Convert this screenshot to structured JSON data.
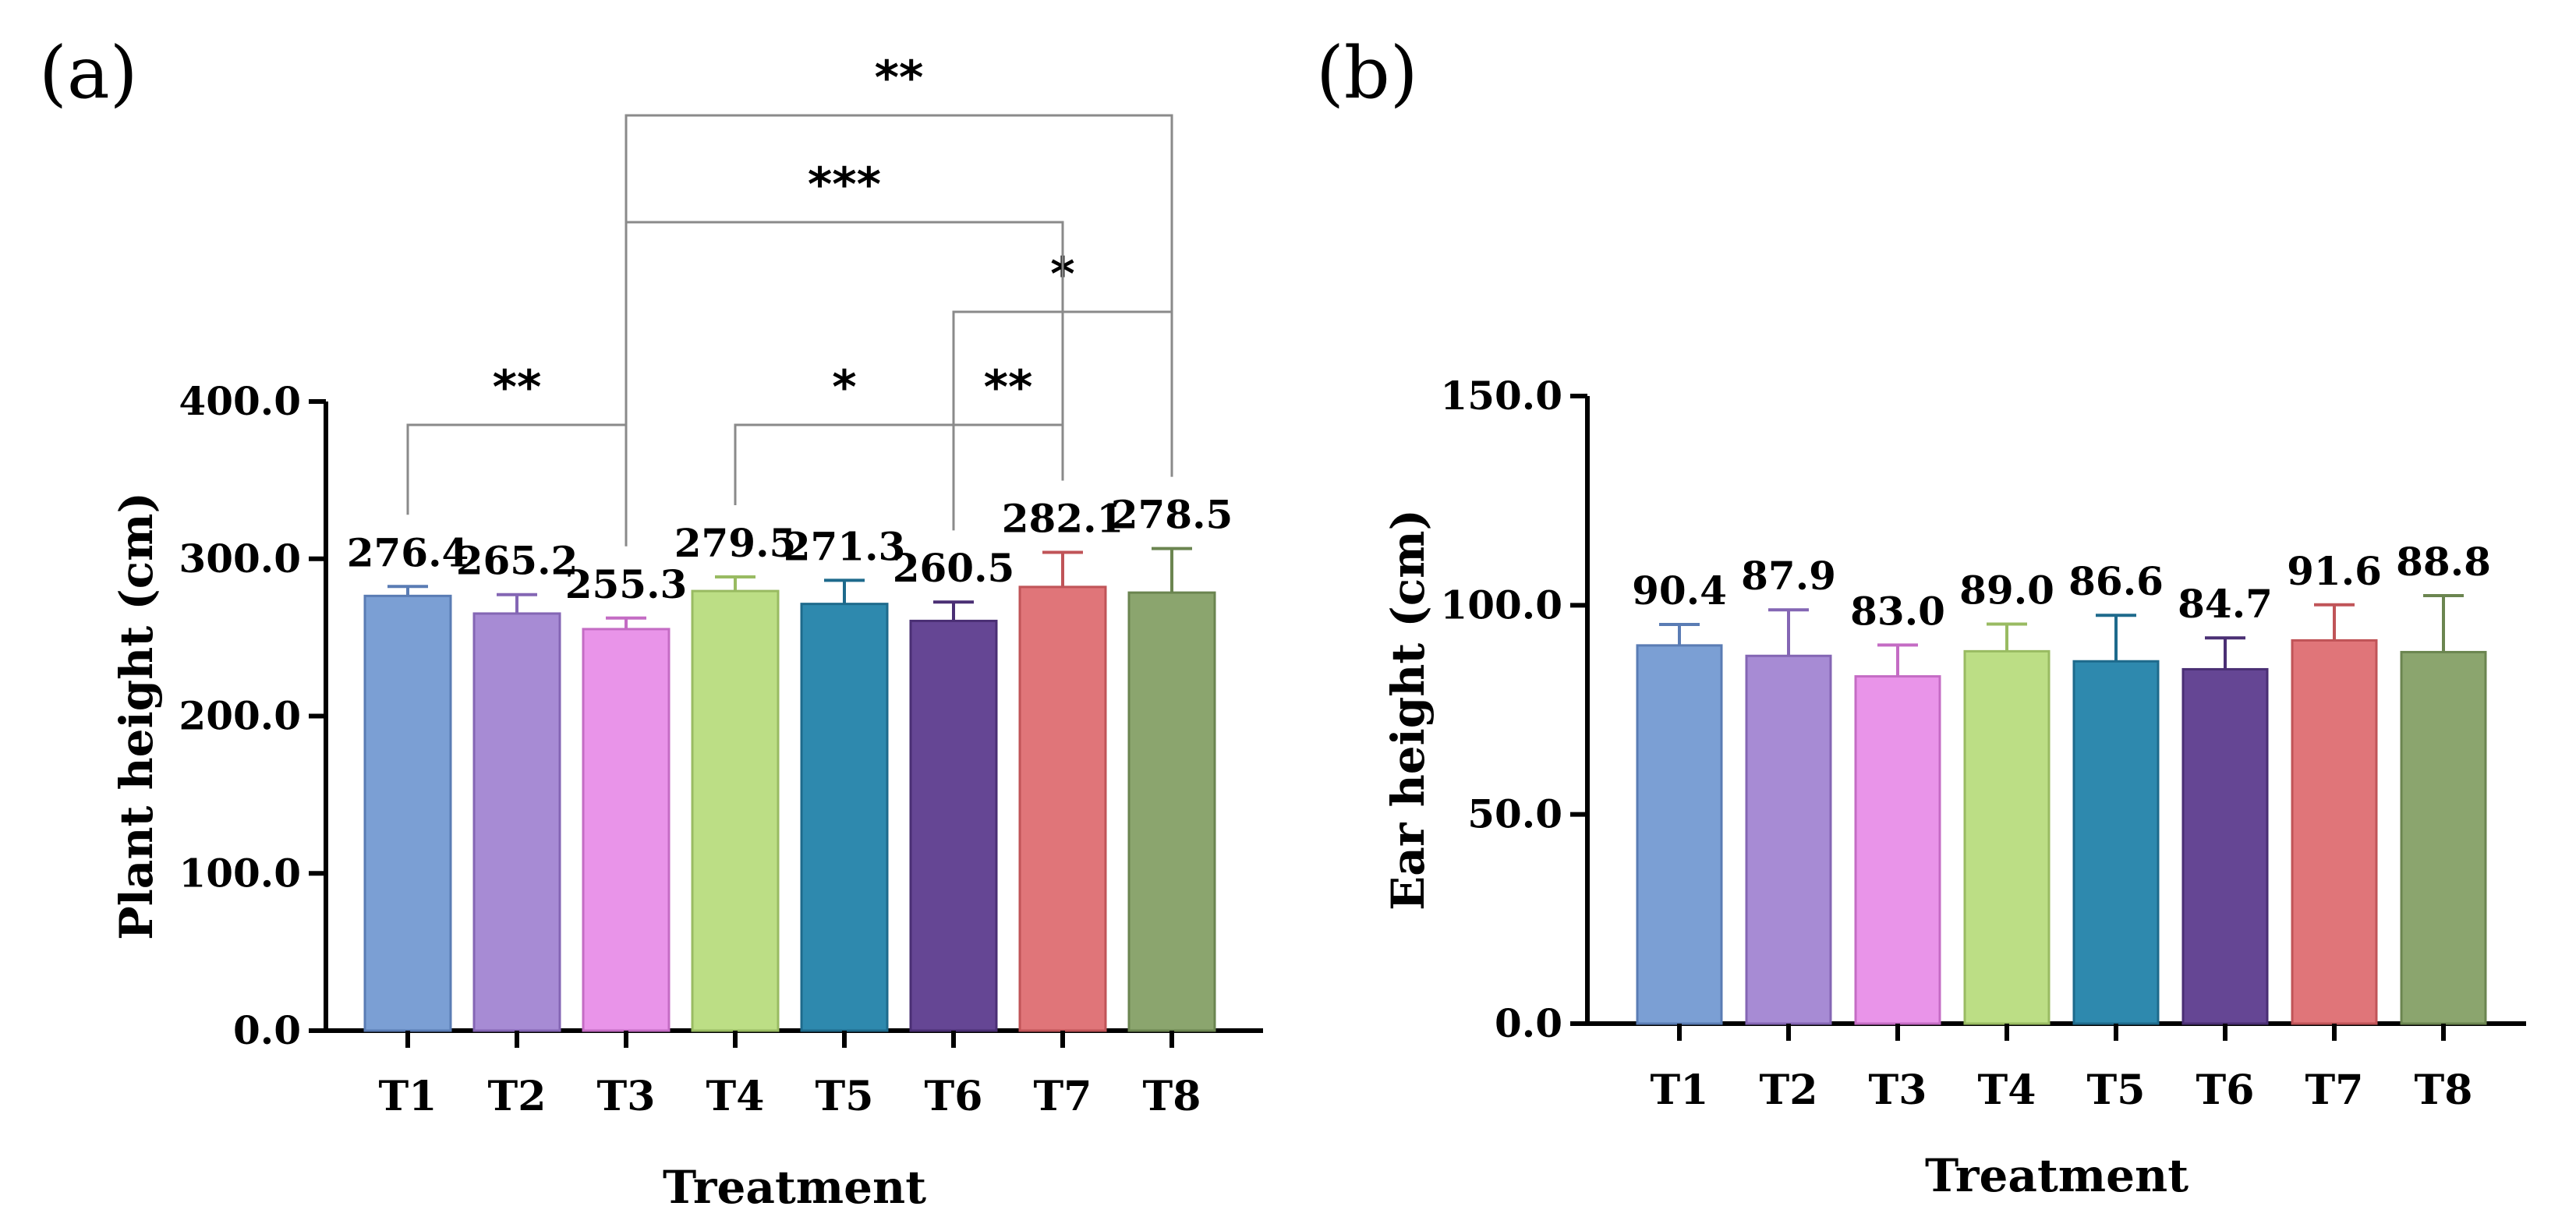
{
  "chart_data": [
    {
      "type": "bar",
      "panel_label": "(a)",
      "title": "",
      "xlabel": "Treatment",
      "ylabel": "Plant height (cm)",
      "ylim": [
        0,
        400
      ],
      "yticks": [
        "0.0",
        "100.0",
        "200.0",
        "300.0",
        "400.0"
      ],
      "ytick_values": [
        0,
        100,
        200,
        300,
        400
      ],
      "categories": [
        "T1",
        "T2",
        "T3",
        "T4",
        "T5",
        "T6",
        "T7",
        "T8"
      ],
      "values": [
        276.4,
        265.2,
        255.3,
        279.5,
        271.3,
        260.5,
        282.1,
        278.5
      ],
      "value_labels": [
        "276.4",
        "265.2",
        "255.3",
        "279.5",
        "271.3",
        "260.5",
        "282.1",
        "278.5"
      ],
      "errors": [
        6,
        12,
        7,
        9,
        15,
        12,
        22,
        28
      ],
      "colors": [
        "#7B9FD4",
        "#A78BD4",
        "#E994E9",
        "#BCDE85",
        "#2E89AE",
        "#654694",
        "#E07579",
        "#8BA56E"
      ],
      "edge_colors": [
        "#5A7CB4",
        "#8466B4",
        "#C46CC4",
        "#99BB62",
        "#1E6A8C",
        "#4A2F74",
        "#C05458",
        "#6B8550"
      ],
      "significance": [
        {
          "from": "T1",
          "to": "T3",
          "label": "**",
          "level": 1
        },
        {
          "from": "T4",
          "to": "T6",
          "label": "*",
          "level": 1
        },
        {
          "from": "T6",
          "to": "T7",
          "label": "**",
          "level": 1
        },
        {
          "from": "T6",
          "to": "T8",
          "label": "*",
          "level": 2
        },
        {
          "from": "T3",
          "to": "T7",
          "label": "***",
          "level": 3
        },
        {
          "from": "T3",
          "to": "T8",
          "label": "**",
          "level": 4
        }
      ]
    },
    {
      "type": "bar",
      "panel_label": "(b)",
      "title": "",
      "xlabel": "Treatment",
      "ylabel": "Ear height (cm)",
      "ylim": [
        0,
        150
      ],
      "yticks": [
        "0.0",
        "50.0",
        "100.0",
        "150.0"
      ],
      "ytick_values": [
        0,
        50,
        100,
        150
      ],
      "categories": [
        "T1",
        "T2",
        "T3",
        "T4",
        "T5",
        "T6",
        "T7",
        "T8"
      ],
      "values": [
        90.4,
        87.9,
        83.0,
        89.0,
        86.6,
        84.7,
        91.6,
        88.8
      ],
      "value_labels": [
        "90.4",
        "87.9",
        "83.0",
        "89.0",
        "86.6",
        "84.7",
        "91.6",
        "88.8"
      ],
      "errors": [
        5,
        11,
        7.5,
        6.5,
        11,
        7.5,
        8.5,
        13.5
      ],
      "colors": [
        "#7B9FD4",
        "#A78BD4",
        "#E994E9",
        "#BCDE85",
        "#2E89AE",
        "#654694",
        "#E07579",
        "#8BA56E"
      ],
      "edge_colors": [
        "#5A7CB4",
        "#8466B4",
        "#C46CC4",
        "#99BB62",
        "#1E6A8C",
        "#4A2F74",
        "#C05458",
        "#6B8550"
      ],
      "significance": []
    }
  ]
}
